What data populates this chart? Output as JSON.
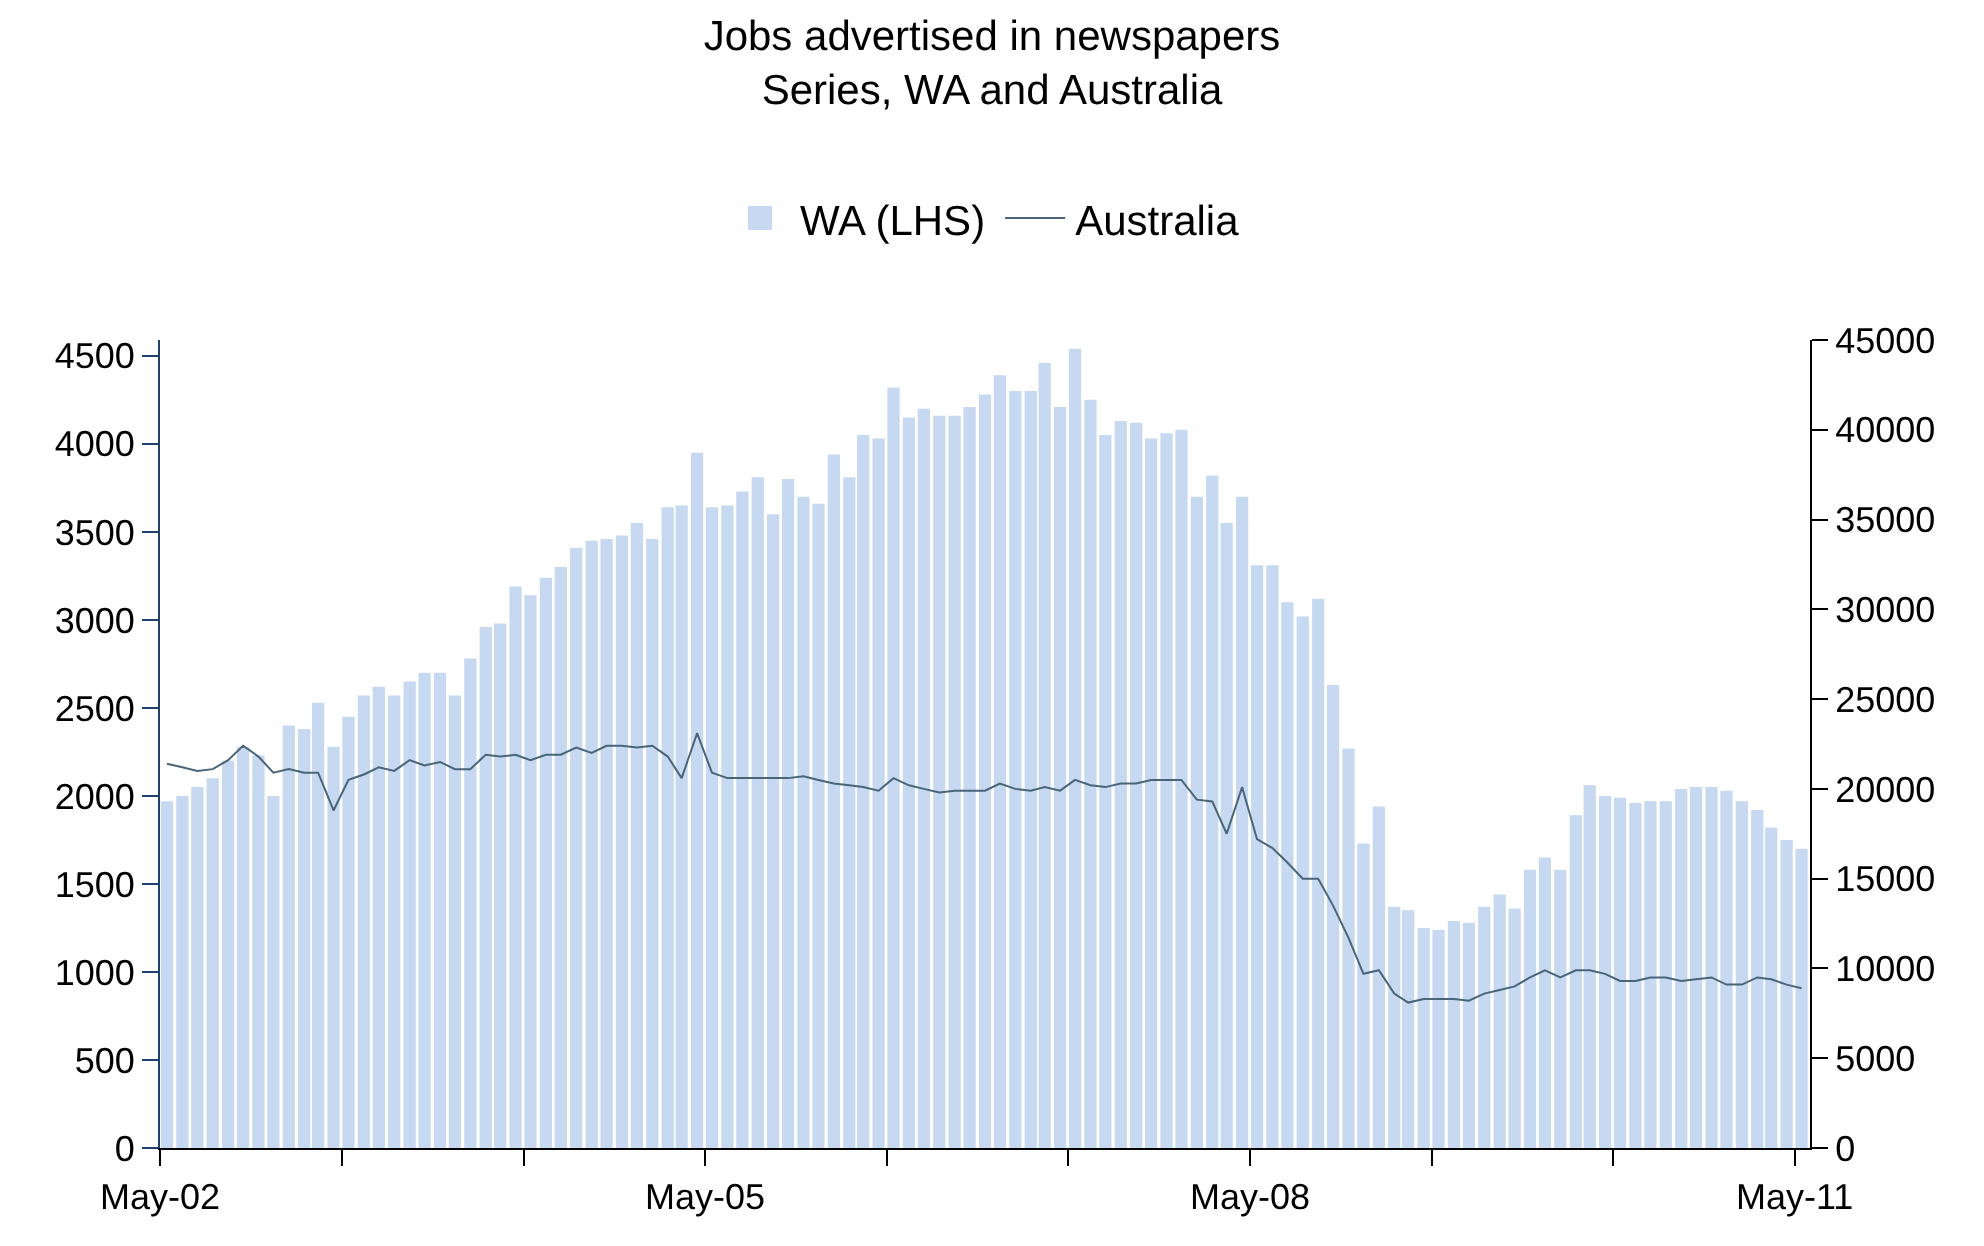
{
  "chart_data": {
    "type": "bar",
    "title": "Jobs advertised in newspapers",
    "subtitle": "Series, WA and Australia",
    "x": [
      "2002-05-15",
      "2002-06-15",
      "2002-07-15",
      "2002-08-15",
      "2002-09-15",
      "2002-10-15",
      "2002-11-15",
      "2002-12-15",
      "2003-01-15",
      "2003-02-15",
      "2003-03-15",
      "2003-04-15",
      "2003-05-15",
      "2003-06-15",
      "2003-07-15",
      "2003-08-15",
      "2003-09-15",
      "2003-10-15",
      "2003-11-15",
      "2003-12-15",
      "2004-01-15",
      "2004-02-15",
      "2004-03-15",
      "2004-04-15",
      "2004-05-15",
      "2004-06-15",
      "2004-07-15",
      "2004-08-15",
      "2004-09-15",
      "2004-10-15",
      "2004-11-15",
      "2004-12-15",
      "2005-01-15",
      "2005-02-15",
      "2005-03-15",
      "2005-04-15",
      "2005-05-15",
      "2005-06-15",
      "2005-07-15",
      "2005-08-15",
      "2005-09-15",
      "2005-10-15",
      "2005-11-15",
      "2005-12-15",
      "2006-01-15",
      "2006-02-15",
      "2006-03-15",
      "2006-04-15",
      "2006-05-15",
      "2006-06-15",
      "2006-07-15",
      "2006-08-15",
      "2006-09-15",
      "2006-10-15",
      "2006-11-15",
      "2006-12-15",
      "2007-01-15",
      "2007-02-15",
      "2007-03-15",
      "2007-04-15",
      "2007-05-15",
      "2007-06-15",
      "2007-07-15",
      "2007-08-15",
      "2007-09-15",
      "2007-10-15",
      "2007-11-15",
      "2007-12-15",
      "2008-01-15",
      "2008-02-15",
      "2008-03-15",
      "2008-04-15",
      "2008-05-15",
      "2008-06-15",
      "2008-07-15",
      "2008-08-15",
      "2008-09-15",
      "2008-10-15",
      "2008-11-15",
      "2008-12-15",
      "2009-01-15",
      "2009-02-15",
      "2009-03-15",
      "2009-04-15",
      "2009-05-15",
      "2009-06-15",
      "2009-07-15",
      "2009-08-15",
      "2009-09-15",
      "2009-10-15",
      "2009-11-15",
      "2009-12-15",
      "2010-01-15",
      "2010-02-15",
      "2010-03-15",
      "2010-04-15",
      "2010-05-15",
      "2010-06-15",
      "2010-07-15",
      "2010-08-15",
      "2010-09-15",
      "2010-10-15",
      "2010-11-15",
      "2010-12-15",
      "2011-01-15",
      "2011-02-15",
      "2011-03-15",
      "2011-04-15",
      "2011-05-15"
    ],
    "series": [
      {
        "name": "WA (LHS)",
        "color": "#c6d9f0",
        "values": [
          1970,
          2000,
          2050,
          2100,
          2200,
          2280,
          2230,
          2000,
          2400,
          2380,
          2530,
          2280,
          2450,
          2570,
          2620,
          2570,
          2650,
          2700,
          2700,
          2570,
          2780,
          2960,
          2980,
          3190,
          3140,
          3240,
          3300,
          3410,
          3450,
          3460,
          3480,
          3550,
          3460,
          3640,
          3650,
          3950,
          3640,
          3650,
          3730,
          3810,
          3600,
          3800,
          3700,
          3660,
          3940,
          3810,
          4050,
          4030,
          4320,
          4150,
          4200,
          4160,
          4160,
          4210,
          4280,
          4390,
          4300,
          4300,
          4460,
          4210,
          4540,
          4250,
          4050,
          4130,
          4120,
          4030,
          4060,
          4080,
          3700,
          3820,
          3550,
          3700,
          3310,
          3310,
          3100,
          3020,
          3120,
          2630,
          2270,
          1730,
          1940,
          1370,
          1350,
          1250,
          1240,
          1290,
          1280,
          1370,
          1440,
          1360,
          1580,
          1650,
          1580,
          1890,
          2060,
          2000,
          1990,
          1960,
          1970,
          1970,
          2040,
          2050,
          2050,
          2030,
          1970,
          1920,
          1820,
          1750,
          1700
        ]
      },
      {
        "name": "Australia",
        "type": "line",
        "axis": "y2",
        "color": "#4a6478",
        "values": [
          21400,
          21200,
          21000,
          21100,
          21600,
          22400,
          21800,
          20900,
          21100,
          20900,
          20900,
          18800,
          20500,
          20800,
          21200,
          21000,
          21600,
          21300,
          21500,
          21100,
          21100,
          21900,
          21800,
          21900,
          21600,
          21900,
          21900,
          22300,
          22000,
          22400,
          22400,
          22300,
          22400,
          21800,
          20600,
          23100,
          20900,
          20600,
          20600,
          20600,
          20600,
          20600,
          20700,
          20500,
          20300,
          20200,
          20100,
          19900,
          20600,
          20200,
          20000,
          19800,
          19900,
          19900,
          19900,
          20300,
          20000,
          19900,
          20100,
          19900,
          20500,
          20200,
          20100,
          20300,
          20300,
          20500,
          20500,
          20500,
          19400,
          19300,
          17500,
          20100,
          17200,
          16700,
          15900,
          15000,
          15000,
          13500,
          11700,
          9700,
          9900,
          8600,
          8100,
          8300,
          8300,
          8300,
          8200,
          8600,
          8800,
          9000,
          9500,
          9900,
          9500,
          9900,
          9900,
          9700,
          9300,
          9300,
          9500,
          9500,
          9300,
          9400,
          9500,
          9100,
          9100,
          9500,
          9400,
          9100,
          8900
        ]
      }
    ],
    "xlim": [
      "2002-05",
      "2011-06"
    ],
    "xticks": [
      {
        "value": "2002-05",
        "label": "May-02"
      },
      {
        "value": "2003-05",
        "label": null
      },
      {
        "value": "2004-05",
        "label": null
      },
      {
        "value": "2005-05",
        "label": "May-05"
      },
      {
        "value": "2006-05",
        "label": null
      },
      {
        "value": "2007-05",
        "label": null
      },
      {
        "value": "2008-05",
        "label": "May-08"
      },
      {
        "value": "2009-05",
        "label": null
      },
      {
        "value": "2010-05",
        "label": null
      },
      {
        "value": "2011-05",
        "label": "May-11"
      }
    ],
    "ylim": [
      0,
      4590
    ],
    "yticks": [
      0,
      500,
      1000,
      1500,
      2000,
      2500,
      3000,
      3500,
      4000,
      4500
    ],
    "y2lim": [
      0,
      45000
    ],
    "y2ticks": [
      0,
      5000,
      10000,
      15000,
      20000,
      25000,
      30000,
      35000,
      40000,
      45000
    ],
    "grid": false,
    "legend": "top",
    "marker": "none",
    "line_style": "solid"
  }
}
